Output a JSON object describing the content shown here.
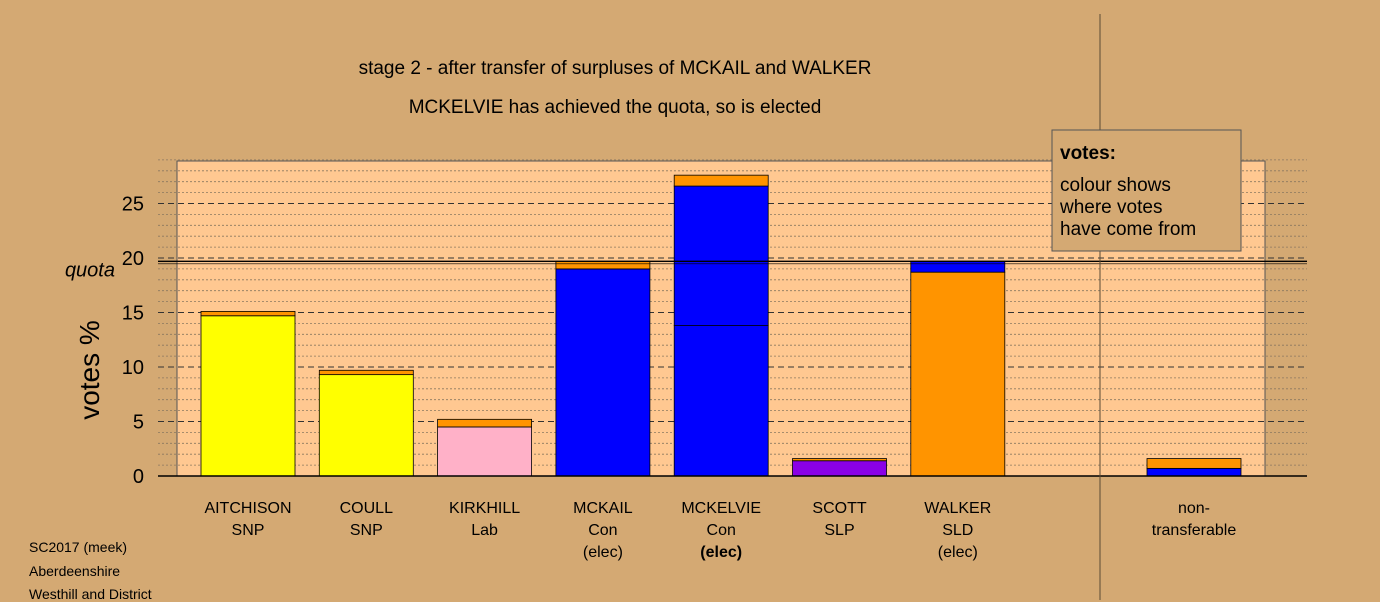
{
  "chart_data": {
    "type": "bar",
    "title": "stage 2 - after transfer of surpluses of MCKAIL and WALKER",
    "subtitle": "MCKELVIE has achieved the quota, so is elected",
    "ylabel": "votes %",
    "ylim": [
      0,
      29
    ],
    "yticks": [
      0,
      5,
      10,
      15,
      20,
      25
    ],
    "quota": 19.7,
    "quota_label": "quota",
    "grid": true,
    "legend": {
      "position": "top-right",
      "title": "votes:",
      "lines": [
        "colour shows",
        "where votes",
        "have come from"
      ]
    },
    "candidates": [
      {
        "name": "AITCHISON",
        "party": "SNP",
        "status": "",
        "segments": [
          {
            "value": 14.7,
            "color": "#FFFF00"
          },
          {
            "value": 0.4,
            "color": "#FF9400"
          }
        ]
      },
      {
        "name": "COULL",
        "party": "SNP",
        "status": "",
        "segments": [
          {
            "value": 9.3,
            "color": "#FFFF00"
          },
          {
            "value": 0.4,
            "color": "#FF9400"
          }
        ]
      },
      {
        "name": "KIRKHILL",
        "party": "Lab",
        "status": "",
        "segments": [
          {
            "value": 4.5,
            "color": "#FFB1C8"
          },
          {
            "value": 0.7,
            "color": "#FF9400"
          }
        ]
      },
      {
        "name": "MCKAIL",
        "party": "Con",
        "status": "(elec)",
        "segments": [
          {
            "value": 19.0,
            "color": "#0000FF"
          },
          {
            "value": 0.7,
            "color": "#FF9400"
          }
        ]
      },
      {
        "name": "MCKELVIE",
        "party": "Con",
        "status": "(elec)",
        "bold_status": true,
        "segments": [
          {
            "value": 13.8,
            "color": "#0000FF"
          },
          {
            "value": 12.8,
            "color": "#0000FF"
          },
          {
            "value": 1.0,
            "color": "#FF9400"
          }
        ]
      },
      {
        "name": "SCOTT",
        "party": "SLP",
        "status": "",
        "segments": [
          {
            "value": 1.4,
            "color": "#8A00E6"
          },
          {
            "value": 0.2,
            "color": "#FF9400"
          }
        ]
      },
      {
        "name": "WALKER",
        "party": "SLD",
        "status": "(elec)",
        "segments": [
          {
            "value": 18.7,
            "color": "#FF9400"
          },
          {
            "value": 1.0,
            "color": "#0000FF"
          }
        ]
      }
    ],
    "nontransferable": {
      "label_lines": [
        "non-",
        "transferable"
      ],
      "segments": [
        {
          "value": 0.7,
          "color": "#0000FF"
        },
        {
          "value": 0.9,
          "color": "#FF9400"
        }
      ]
    }
  },
  "footer": [
    "SC2017 (meek)",
    "Aberdeenshire",
    "Westhill and District"
  ]
}
